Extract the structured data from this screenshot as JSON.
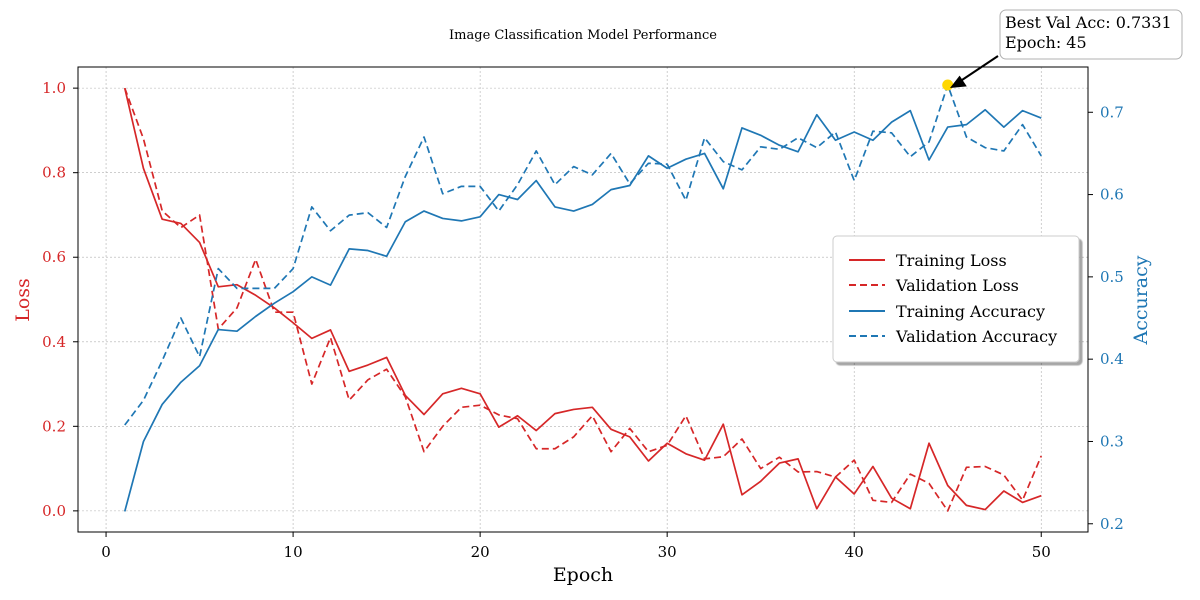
{
  "colors": {
    "loss": "#d62728",
    "accuracy": "#1f77b4",
    "highlight": "#ffd700",
    "grid": "#b0b0b0",
    "axis": "#000000"
  },
  "chart_data": {
    "type": "line",
    "title": "Image Classification Model Performance",
    "xlabel": "Epoch",
    "ylabel_left": "Loss",
    "ylabel_right": "Accuracy",
    "xlim": [
      -1.5,
      52.5
    ],
    "ylim_left": [
      -0.05,
      1.05
    ],
    "ylim_right": [
      0.19,
      0.755
    ],
    "xticks": [
      0,
      10,
      20,
      30,
      40,
      50
    ],
    "xtick_labels": [
      "0",
      "10",
      "20",
      "30",
      "40",
      "50"
    ],
    "yticks_left": [
      0.0,
      0.2,
      0.4,
      0.6,
      0.8,
      1.0
    ],
    "ytick_labels_left": [
      "0.0",
      "0.2",
      "0.4",
      "0.6",
      "0.8",
      "1.0"
    ],
    "yticks_right": [
      0.2,
      0.3,
      0.4,
      0.5,
      0.6,
      0.7
    ],
    "ytick_labels_right": [
      "0.2",
      "0.3",
      "0.4",
      "0.5",
      "0.6",
      "0.7"
    ],
    "grid": true,
    "legend_position": "center-right",
    "x": [
      1,
      2,
      3,
      4,
      5,
      6,
      7,
      8,
      9,
      10,
      11,
      12,
      13,
      14,
      15,
      16,
      17,
      18,
      19,
      20,
      21,
      22,
      23,
      24,
      25,
      26,
      27,
      28,
      29,
      30,
      31,
      32,
      33,
      34,
      35,
      36,
      37,
      38,
      39,
      40,
      41,
      42,
      43,
      44,
      45,
      46,
      47,
      48,
      49,
      50
    ],
    "series": [
      {
        "name": "Training Loss",
        "axis": "left",
        "style": "solid",
        "values": [
          1.0,
          0.81,
          0.69,
          0.68,
          0.635,
          0.53,
          0.535,
          0.51,
          0.48,
          0.445,
          0.408,
          0.428,
          0.33,
          0.345,
          0.363,
          0.273,
          0.228,
          0.277,
          0.29,
          0.277,
          0.198,
          0.225,
          0.19,
          0.23,
          0.24,
          0.245,
          0.193,
          0.175,
          0.118,
          0.16,
          0.135,
          0.12,
          0.205,
          0.038,
          0.07,
          0.113,
          0.123,
          0.005,
          0.08,
          0.04,
          0.105,
          0.03,
          0.005,
          0.16,
          0.06,
          0.013,
          0.003,
          0.047,
          0.02,
          0.036
        ]
      },
      {
        "name": "Validation Loss",
        "axis": "left",
        "style": "dashed",
        "values": [
          1.0,
          0.88,
          0.71,
          0.67,
          0.7,
          0.43,
          0.48,
          0.595,
          0.47,
          0.47,
          0.3,
          0.41,
          0.262,
          0.31,
          0.335,
          0.27,
          0.14,
          0.2,
          0.245,
          0.25,
          0.227,
          0.218,
          0.147,
          0.147,
          0.175,
          0.225,
          0.14,
          0.195,
          0.14,
          0.155,
          0.225,
          0.123,
          0.128,
          0.17,
          0.1,
          0.127,
          0.092,
          0.093,
          0.08,
          0.12,
          0.025,
          0.02,
          0.087,
          0.065,
          0.0,
          0.103,
          0.105,
          0.085,
          0.025,
          0.13
        ]
      },
      {
        "name": "Training Accuracy",
        "axis": "right",
        "style": "solid",
        "values": [
          0.215,
          0.3,
          0.345,
          0.372,
          0.392,
          0.436,
          0.434,
          0.452,
          0.468,
          0.482,
          0.5,
          0.49,
          0.534,
          0.532,
          0.525,
          0.567,
          0.58,
          0.571,
          0.568,
          0.573,
          0.6,
          0.594,
          0.617,
          0.585,
          0.58,
          0.588,
          0.606,
          0.611,
          0.647,
          0.632,
          0.643,
          0.65,
          0.607,
          0.681,
          0.672,
          0.66,
          0.652,
          0.697,
          0.666,
          0.676,
          0.666,
          0.688,
          0.702,
          0.642,
          0.682,
          0.685,
          0.703,
          0.682,
          0.702,
          0.693
        ]
      },
      {
        "name": "Validation Accuracy",
        "axis": "right",
        "style": "dashed",
        "values": [
          0.32,
          0.35,
          0.398,
          0.45,
          0.403,
          0.51,
          0.486,
          0.486,
          0.486,
          0.51,
          0.585,
          0.556,
          0.575,
          0.578,
          0.56,
          0.622,
          0.67,
          0.601,
          0.61,
          0.61,
          0.58,
          0.612,
          0.653,
          0.612,
          0.634,
          0.624,
          0.65,
          0.613,
          0.638,
          0.637,
          0.593,
          0.669,
          0.64,
          0.63,
          0.658,
          0.655,
          0.669,
          0.657,
          0.676,
          0.617,
          0.677,
          0.675,
          0.646,
          0.664,
          0.7331,
          0.67,
          0.657,
          0.653,
          0.685,
          0.647
        ]
      }
    ],
    "highlight_point": {
      "x": 45,
      "y": 0.7331,
      "axis": "right"
    },
    "annotation": {
      "line1": "Best Val Acc: 0.7331",
      "line2": "Epoch: 45"
    }
  }
}
